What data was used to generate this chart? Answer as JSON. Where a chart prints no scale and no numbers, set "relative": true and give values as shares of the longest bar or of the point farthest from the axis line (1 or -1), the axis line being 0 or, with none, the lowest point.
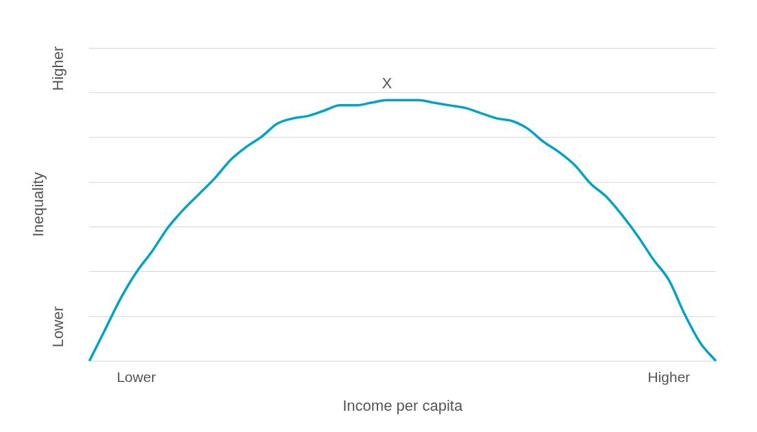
{
  "chart_data": {
    "type": "line",
    "relative": true,
    "xlabel": "Income per capita",
    "ylabel": "Inequality",
    "color": "#00a3c8",
    "grid": "y",
    "marker": "none",
    "categories": [
      null,
      null,
      null,
      "Lower",
      null,
      null,
      null,
      null,
      null,
      null,
      null,
      null,
      null,
      null,
      null,
      null,
      null,
      null,
      null,
      null,
      null,
      null,
      null,
      null,
      null,
      null,
      null,
      null,
      null,
      null,
      null,
      null,
      null,
      null,
      null,
      null,
      null,
      "Higher",
      null,
      null,
      null
    ],
    "values": [
      0,
      0.12,
      0.24,
      0.34,
      0.42,
      0.51,
      0.58,
      0.64,
      0.7,
      0.77,
      0.82,
      0.86,
      0.91,
      0.93,
      0.94,
      0.96,
      0.98,
      0.98,
      0.99,
      1,
      1,
      1,
      0.99,
      0.98,
      0.97,
      0.95,
      0.93,
      0.92,
      0.89,
      0.84,
      0.8,
      0.75,
      0.68,
      0.63,
      0.56,
      0.48,
      0.39,
      0.31,
      0.18,
      0.07,
      0
    ],
    "annotations": [
      "Lower",
      "Higher",
      "X"
    ]
  }
}
